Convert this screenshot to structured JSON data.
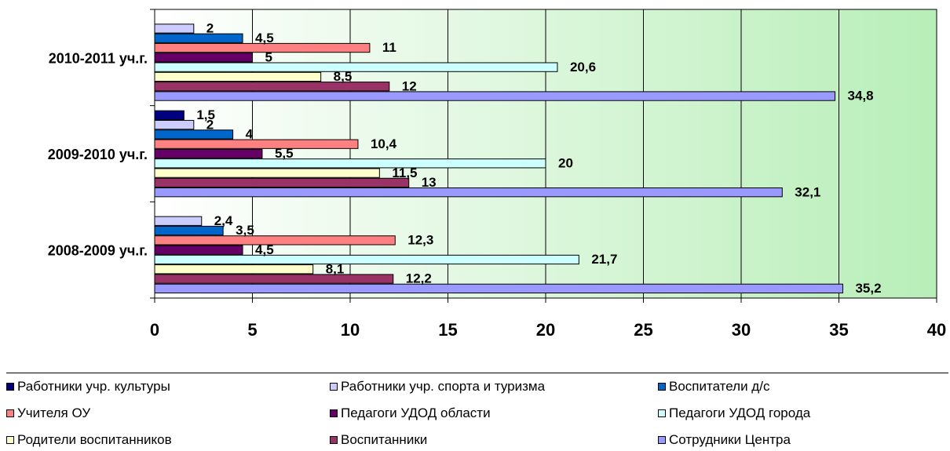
{
  "chart_data": {
    "type": "bar",
    "orientation": "horizontal",
    "categories": [
      "2010-2011 уч.г.",
      "2009-2010 уч.г.",
      "2008-2009 уч.г."
    ],
    "xlim": [
      0,
      40
    ],
    "xticks": [
      "0",
      "5",
      "10",
      "15",
      "20",
      "25",
      "30",
      "35",
      "40"
    ],
    "grid": true,
    "legend_position": "bottom",
    "series": [
      {
        "name": "Работники учр. культуры",
        "color": "#000080",
        "values": [
          null,
          1.5,
          null
        ],
        "labels": [
          "",
          "1,5",
          ""
        ]
      },
      {
        "name": "Работники учр. спорта и туризма",
        "color": "#CCCCFF",
        "values": [
          2,
          2,
          2.4
        ],
        "labels": [
          "2",
          "2",
          "2,4"
        ]
      },
      {
        "name": "Воспитатели д/с",
        "color": "#0066CC",
        "values": [
          4.5,
          4,
          3.5
        ],
        "labels": [
          "4,5",
          "4",
          "3,5"
        ]
      },
      {
        "name": "Учителя ОУ",
        "color": "#FF8080",
        "values": [
          11,
          10.4,
          12.3
        ],
        "labels": [
          "11",
          "10,4",
          "12,3"
        ]
      },
      {
        "name": "Педагоги УДОД области",
        "color": "#660066",
        "values": [
          5,
          5.5,
          4.5
        ],
        "labels": [
          "5",
          "5,5",
          "4,5"
        ]
      },
      {
        "name": "Педагоги УДОД города",
        "color": "#CCFFFF",
        "values": [
          20.6,
          20,
          21.7
        ],
        "labels": [
          "20,6",
          "20",
          "21,7"
        ]
      },
      {
        "name": "Родители воспитанников",
        "color": "#FFFFCC",
        "values": [
          8.5,
          11.5,
          8.1
        ],
        "labels": [
          "8,5",
          "11,5",
          "8,1"
        ]
      },
      {
        "name": "Воспитанники",
        "color": "#993366",
        "values": [
          12,
          13,
          12.2
        ],
        "labels": [
          "12",
          "13",
          "12,2"
        ]
      },
      {
        "name": "Сотрудники Центра",
        "color": "#9999FF",
        "values": [
          34.8,
          32.1,
          35.2
        ],
        "labels": [
          "34,8",
          "32,1",
          "35,2"
        ]
      }
    ]
  }
}
